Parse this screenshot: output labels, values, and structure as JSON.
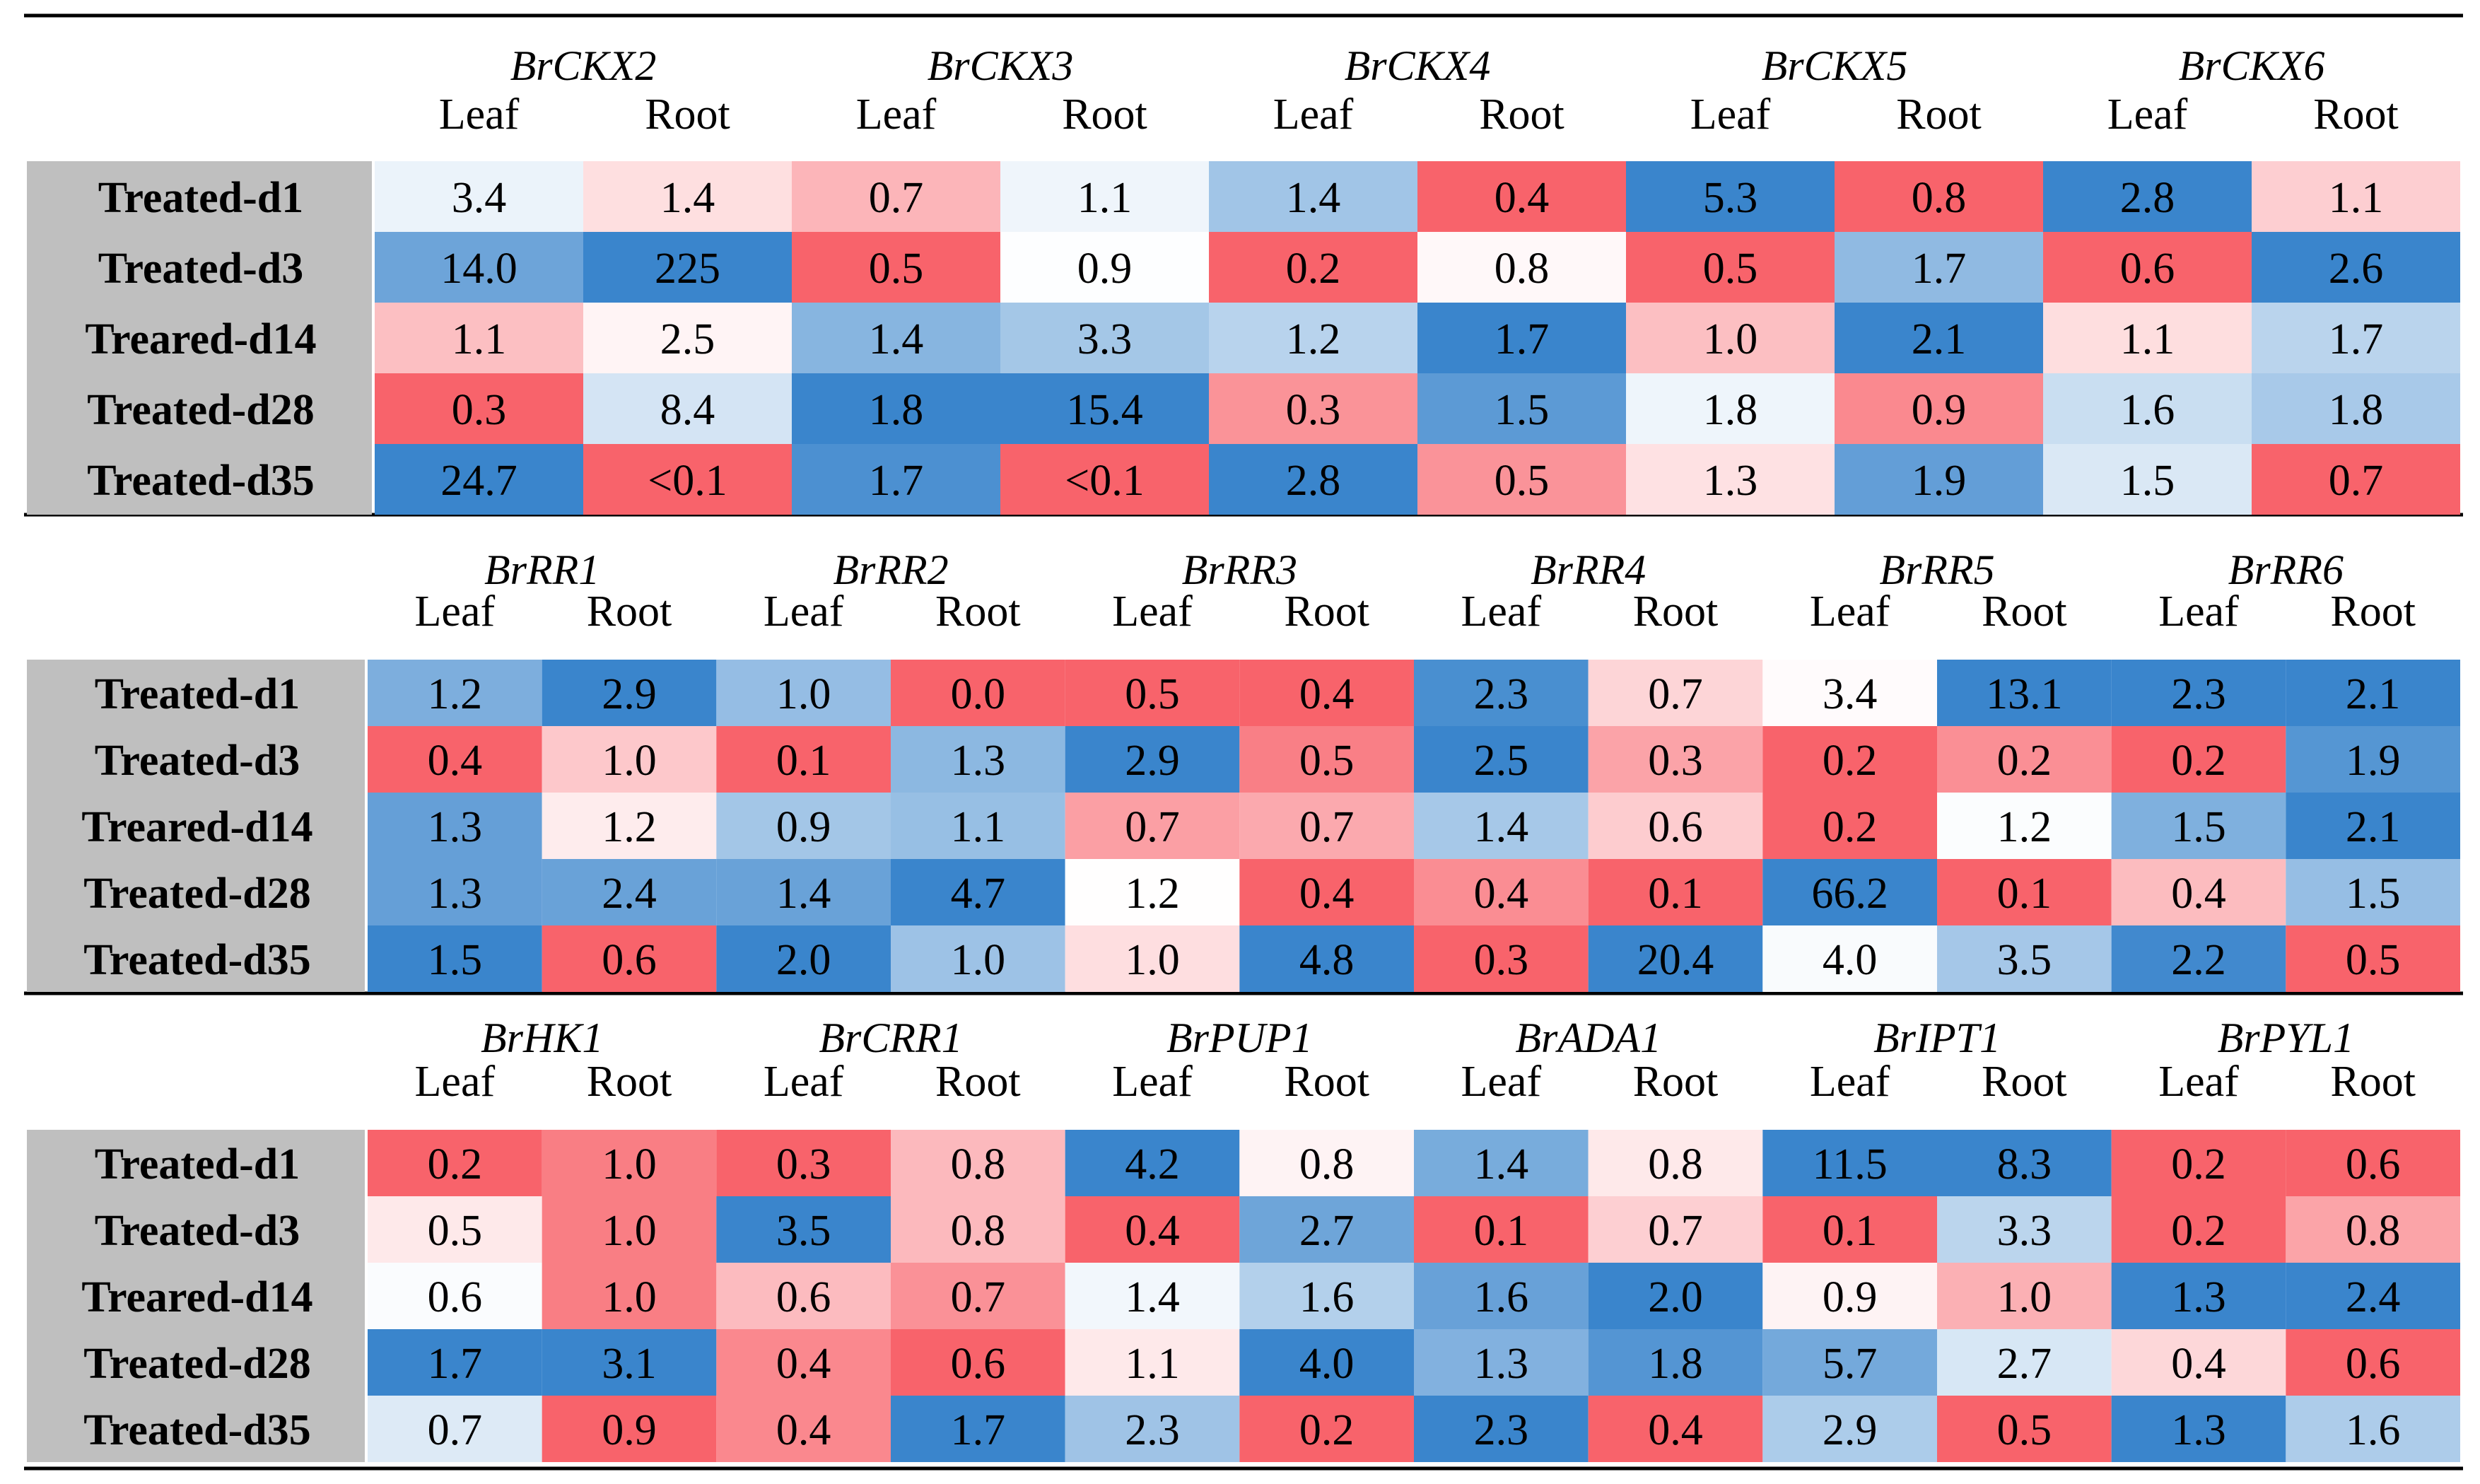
{
  "row_labels": [
    "Treated-d1",
    "Treated-d3",
    "Treared-d14",
    "Treated-d28",
    "Treated-d35"
  ],
  "tissues": [
    "Leaf",
    "Root"
  ],
  "colors": {
    "high": "#3a85cc",
    "low": "#f8636b",
    "neutral": "#ffffff",
    "row_label_bg": "#bfbfbf",
    "rule": "#000000"
  },
  "chart_data": [
    {
      "type": "heatmap",
      "genes": [
        "BrCKX2",
        "BrCKX3",
        "BrCKX4",
        "BrCKX5",
        "BrCKX6"
      ],
      "rows": [
        [
          "3.4",
          "1.4",
          "0.7",
          "1.1",
          "1.4",
          "0.4",
          "5.3",
          "0.8",
          "2.8",
          "1.1"
        ],
        [
          "14.0",
          "225",
          "0.5",
          "0.9",
          "0.2",
          "0.8",
          "0.5",
          "1.7",
          "0.6",
          "2.6"
        ],
        [
          "1.1",
          "2.5",
          "1.4",
          "3.3",
          "1.2",
          "1.7",
          "1.0",
          "2.1",
          "1.1",
          "1.7"
        ],
        [
          "0.3",
          "8.4",
          "1.8",
          "15.4",
          "0.3",
          "1.5",
          "1.8",
          "0.9",
          "1.6",
          "1.8"
        ],
        [
          "24.7",
          "<0.1",
          "1.7",
          "<0.1",
          "2.8",
          "0.5",
          "1.3",
          "1.9",
          "1.5",
          "0.7"
        ]
      ]
    },
    {
      "type": "heatmap",
      "genes": [
        "BrRR1",
        "BrRR2",
        "BrRR3",
        "BrRR4",
        "BrRR5",
        "BrRR6"
      ],
      "rows": [
        [
          "1.2",
          "2.9",
          "1.0",
          "0.0",
          "0.5",
          "0.4",
          "2.3",
          "0.7",
          "3.4",
          "13.1",
          "2.3",
          "2.1"
        ],
        [
          "0.4",
          "1.0",
          "0.1",
          "1.3",
          "2.9",
          "0.5",
          "2.5",
          "0.3",
          "0.2",
          "0.2",
          "0.2",
          "1.9"
        ],
        [
          "1.3",
          "1.2",
          "0.9",
          "1.1",
          "0.7",
          "0.7",
          "1.4",
          "0.6",
          "0.2",
          "1.2",
          "1.5",
          "2.1"
        ],
        [
          "1.3",
          "2.4",
          "1.4",
          "4.7",
          "1.2",
          "0.4",
          "0.4",
          "0.1",
          "66.2",
          "0.1",
          "0.4",
          "1.5"
        ],
        [
          "1.5",
          "0.6",
          "2.0",
          "1.0",
          "1.0",
          "4.8",
          "0.3",
          "20.4",
          "4.0",
          "3.5",
          "2.2",
          "0.5"
        ]
      ]
    },
    {
      "type": "heatmap",
      "genes": [
        "BrHK1",
        "BrCRR1",
        "BrPUP1",
        "BrADA1",
        "BrIPT1",
        "BrPYL1"
      ],
      "rows": [
        [
          "0.2",
          "1.0",
          "0.3",
          "0.8",
          "4.2",
          "0.8",
          "1.4",
          "0.8",
          "11.5",
          "8.3",
          "0.2",
          "0.6"
        ],
        [
          "0.5",
          "1.0",
          "3.5",
          "0.8",
          "0.4",
          "2.7",
          "0.1",
          "0.7",
          "0.1",
          "3.3",
          "0.2",
          "0.8"
        ],
        [
          "0.6",
          "1.0",
          "0.6",
          "0.7",
          "1.4",
          "1.6",
          "1.6",
          "2.0",
          "0.9",
          "1.0",
          "1.3",
          "2.4"
        ],
        [
          "1.7",
          "3.1",
          "0.4",
          "0.6",
          "1.1",
          "4.0",
          "1.3",
          "1.8",
          "5.7",
          "2.7",
          "0.4",
          "0.6"
        ],
        [
          "0.7",
          "0.9",
          "0.4",
          "1.7",
          "2.3",
          "0.2",
          "2.3",
          "0.4",
          "2.9",
          "0.5",
          "1.3",
          "1.6"
        ]
      ]
    }
  ]
}
